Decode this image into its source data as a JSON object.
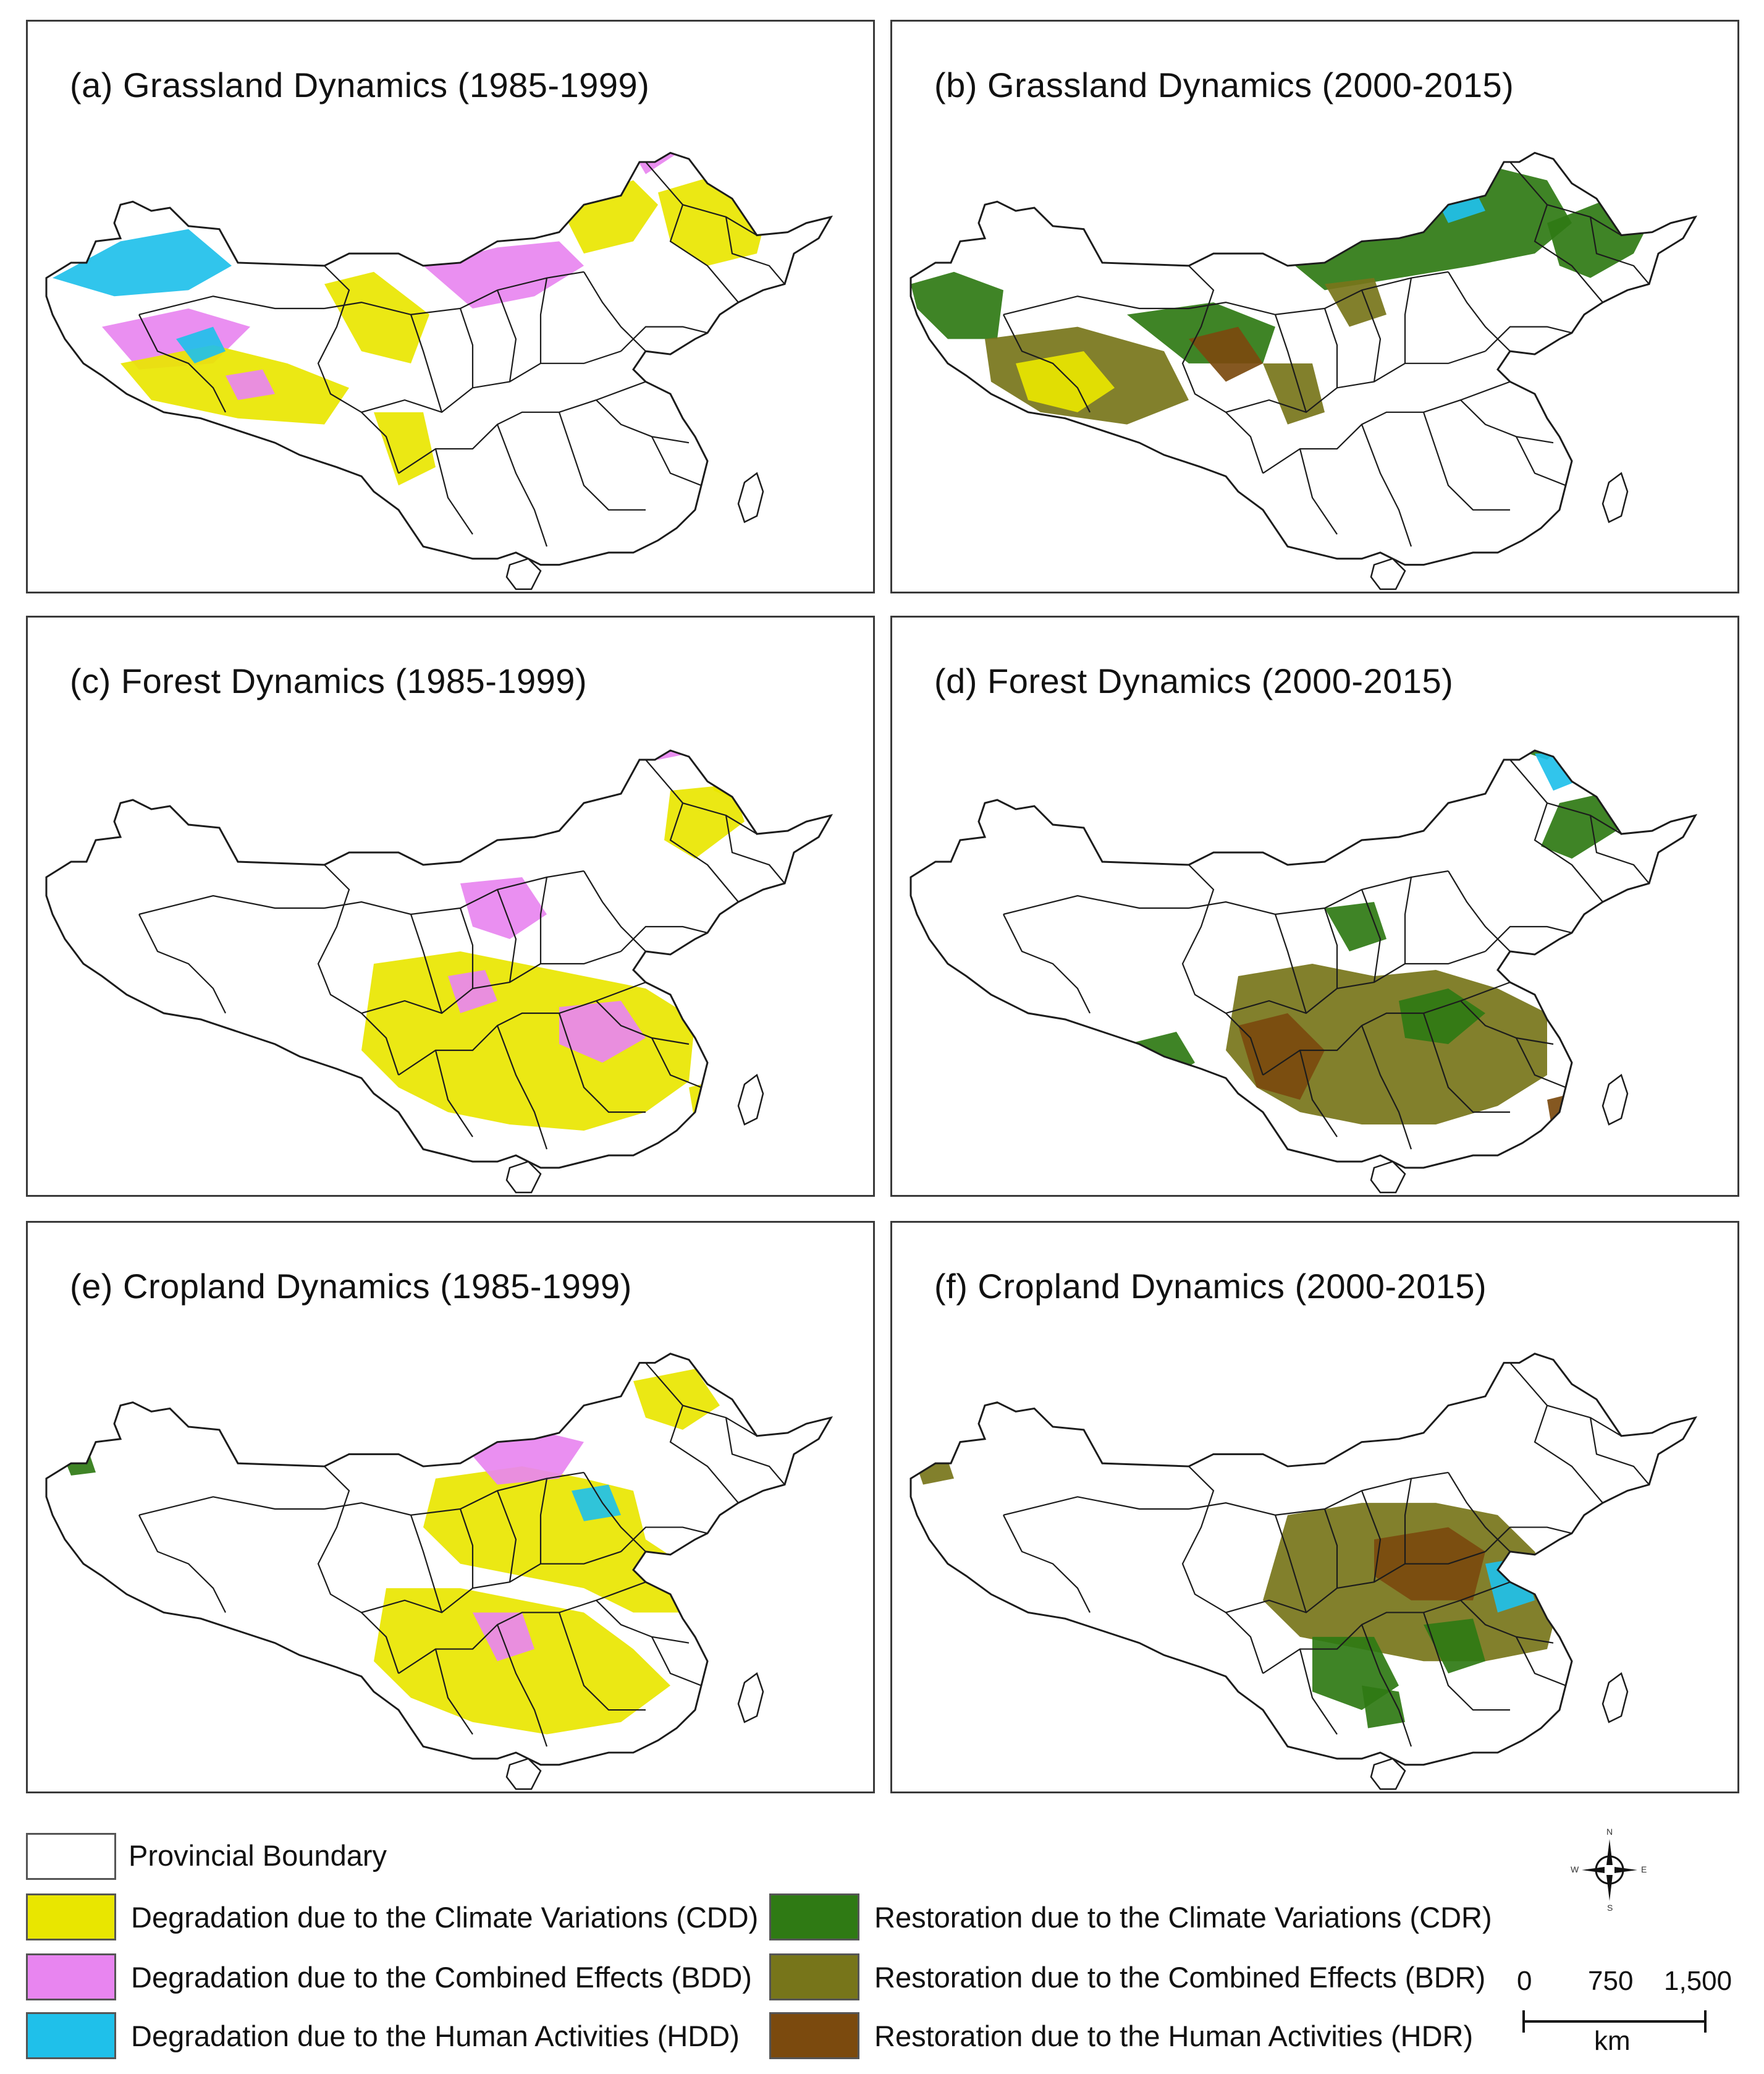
{
  "colors": {
    "CDD": "#e9e600",
    "BDD": "#e885f0",
    "HDD": "#1fc0ea",
    "CDR": "#2f7a14",
    "BDR": "#77751a",
    "HDR": "#7b4a0e",
    "boundary": "#1c1c1c",
    "land_fill": "#ffffff"
  },
  "panels": [
    {
      "title": "(a) Grassland Dynamics (1985-1999)",
      "period": "1985-1999",
      "landcover": "grassland"
    },
    {
      "title": "(b) Grassland Dynamics (2000-2015)",
      "period": "2000-2015",
      "landcover": "grassland"
    },
    {
      "title": "(c) Forest Dynamics (1985-1999)",
      "period": "1985-1999",
      "landcover": "forest"
    },
    {
      "title": "(d) Forest Dynamics (2000-2015)",
      "period": "2000-2015",
      "landcover": "forest"
    },
    {
      "title": "(e) Cropland Dynamics (1985-1999)",
      "period": "1985-1999",
      "landcover": "cropland"
    },
    {
      "title": "(f) Cropland Dynamics (2000-2015)",
      "period": "2000-2015",
      "landcover": "cropland"
    }
  ],
  "legend": {
    "boundary_label": "Provincial Boundary",
    "items": [
      {
        "code": "CDD",
        "label": "Degradation due to the Climate Variations (CDD)"
      },
      {
        "code": "BDD",
        "label": "Degradation due to the Combined Effects (BDD)"
      },
      {
        "code": "HDD",
        "label": "Degradation due to the Human Activities (HDD)"
      },
      {
        "code": "CDR",
        "label": "Restoration due to the Climate Variations (CDR)"
      },
      {
        "code": "BDR",
        "label": "Restoration due to the Combined Effects (BDR)"
      },
      {
        "code": "HDR",
        "label": "Restoration due to the Human Activities (HDR)"
      }
    ]
  },
  "scale_bar": {
    "ticks": [
      "0",
      "750",
      "1,500"
    ],
    "unit": "km"
  },
  "compass": {
    "n": "N",
    "s": "S",
    "e": "E",
    "w": "W"
  }
}
